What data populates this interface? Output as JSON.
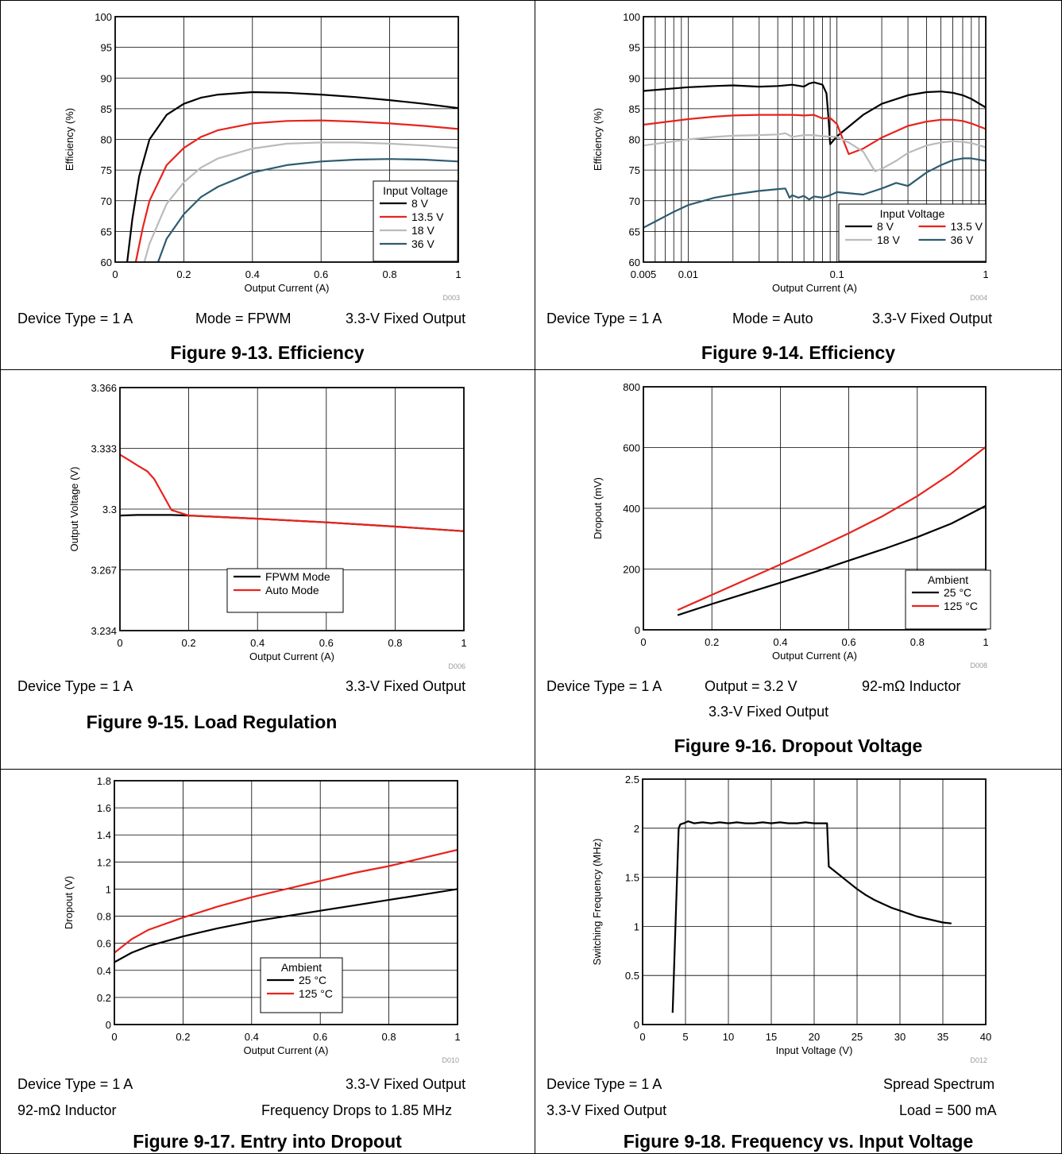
{
  "chart_data": [
    {
      "type": "line",
      "figure_id": "D003",
      "xlabel": "Output Current (A)",
      "ylabel": "Efficiency (%)",
      "xlim": [
        0,
        1
      ],
      "ylim": [
        60,
        100
      ],
      "xticks": [
        0,
        0.2,
        0.4,
        0.6,
        0.8,
        1
      ],
      "xtick_labels": [
        "0",
        "0.2",
        "0.4",
        "0.6",
        "0.8",
        "1"
      ],
      "yticks": [
        60,
        65,
        70,
        75,
        80,
        85,
        90,
        95,
        100
      ],
      "ytick_labels": [
        "60",
        "65",
        "70",
        "75",
        "80",
        "85",
        "90",
        "95",
        "100"
      ],
      "xscale": "linear",
      "grid": true,
      "legend_title": "Input Voltage",
      "legend_position": "bottom-right",
      "legend_columns": 1,
      "series": [
        {
          "name": "8 V",
          "color": "#000000",
          "x": [
            0.035,
            0.05,
            0.07,
            0.1,
            0.15,
            0.2,
            0.25,
            0.3,
            0.4,
            0.5,
            0.6,
            0.7,
            0.8,
            0.9,
            1.0
          ],
          "y": [
            60,
            67,
            74,
            80,
            84,
            85.8,
            86.8,
            87.3,
            87.7,
            87.6,
            87.3,
            86.9,
            86.4,
            85.8,
            85.1
          ]
        },
        {
          "name": "13.5 V",
          "color": "#e8231d",
          "x": [
            0.06,
            0.08,
            0.1,
            0.15,
            0.2,
            0.25,
            0.3,
            0.4,
            0.5,
            0.6,
            0.7,
            0.8,
            0.9,
            1.0
          ],
          "y": [
            60,
            65.5,
            70,
            75.8,
            78.6,
            80.4,
            81.5,
            82.6,
            83.0,
            83.1,
            82.9,
            82.6,
            82.2,
            81.7
          ]
        },
        {
          "name": "18 V",
          "color": "#bbbbbb",
          "x": [
            0.085,
            0.1,
            0.15,
            0.2,
            0.25,
            0.3,
            0.4,
            0.5,
            0.6,
            0.7,
            0.8,
            0.9,
            1.0
          ],
          "y": [
            60,
            63,
            69.5,
            73,
            75.4,
            76.9,
            78.5,
            79.3,
            79.5,
            79.5,
            79.3,
            79.0,
            78.6
          ]
        },
        {
          "name": "36 V",
          "color": "#2e5c6e",
          "x": [
            0.125,
            0.15,
            0.2,
            0.25,
            0.3,
            0.4,
            0.5,
            0.6,
            0.7,
            0.8,
            0.9,
            1.0
          ],
          "y": [
            60,
            63.8,
            67.8,
            70.6,
            72.3,
            74.6,
            75.8,
            76.4,
            76.7,
            76.8,
            76.7,
            76.4
          ]
        }
      ]
    },
    {
      "type": "line",
      "figure_id": "D004",
      "xlabel": "Output Current (A)",
      "ylabel": "Efficiency (%)",
      "xlim": [
        0.005,
        1
      ],
      "ylim": [
        60,
        100
      ],
      "xticks": [
        0.005,
        0.01,
        0.1,
        1
      ],
      "xtick_labels": [
        "0.005",
        "0.01",
        "0.1",
        "1"
      ],
      "yticks": [
        60,
        65,
        70,
        75,
        80,
        85,
        90,
        95,
        100
      ],
      "ytick_labels": [
        "60",
        "65",
        "70",
        "75",
        "80",
        "85",
        "90",
        "95",
        "100"
      ],
      "xscale": "log",
      "grid": true,
      "legend_title": "Input Voltage",
      "legend_position": "bottom-right",
      "legend_columns": 2,
      "series": [
        {
          "name": "8 V",
          "color": "#000000",
          "x": [
            0.005,
            0.01,
            0.015,
            0.02,
            0.03,
            0.04,
            0.05,
            0.06,
            0.065,
            0.07,
            0.075,
            0.08,
            0.085,
            0.088,
            0.09,
            0.1,
            0.15,
            0.2,
            0.3,
            0.4,
            0.5,
            0.6,
            0.7,
            0.8,
            1.0
          ],
          "y": [
            87.9,
            88.5,
            88.7,
            88.8,
            88.6,
            88.7,
            88.9,
            88.6,
            89.1,
            89.3,
            89.1,
            88.9,
            87.5,
            83,
            79.2,
            80.5,
            84,
            85.8,
            87.2,
            87.7,
            87.8,
            87.6,
            87.2,
            86.6,
            85.2
          ]
        },
        {
          "name": "13.5 V",
          "color": "#e8231d",
          "x": [
            0.005,
            0.01,
            0.015,
            0.02,
            0.03,
            0.04,
            0.05,
            0.06,
            0.07,
            0.08,
            0.09,
            0.1,
            0.12,
            0.15,
            0.2,
            0.3,
            0.4,
            0.5,
            0.6,
            0.7,
            0.8,
            1.0
          ],
          "y": [
            82.4,
            83.3,
            83.7,
            83.9,
            84.0,
            84.0,
            84.0,
            83.9,
            84.0,
            83.4,
            83.5,
            82.5,
            77.6,
            78.5,
            80.3,
            82.2,
            82.9,
            83.2,
            83.2,
            83.0,
            82.6,
            81.7
          ]
        },
        {
          "name": "18 V",
          "color": "#bbbbbb",
          "x": [
            0.005,
            0.01,
            0.015,
            0.02,
            0.03,
            0.04,
            0.045,
            0.05,
            0.06,
            0.07,
            0.08,
            0.1,
            0.12,
            0.15,
            0.18,
            0.2,
            0.25,
            0.3,
            0.4,
            0.5,
            0.6,
            0.7,
            0.8,
            1.0
          ],
          "y": [
            79.0,
            80.0,
            80.4,
            80.6,
            80.7,
            80.8,
            81.0,
            80.4,
            80.7,
            80.7,
            80.5,
            80.4,
            79.5,
            78.0,
            74.8,
            75.2,
            76.5,
            77.8,
            79.0,
            79.5,
            79.7,
            79.6,
            79.4,
            78.7
          ]
        },
        {
          "name": "36 V",
          "color": "#2e5c6e",
          "x": [
            0.005,
            0.006,
            0.008,
            0.01,
            0.015,
            0.02,
            0.03,
            0.04,
            0.045,
            0.048,
            0.05,
            0.055,
            0.06,
            0.065,
            0.07,
            0.08,
            0.09,
            0.1,
            0.15,
            0.2,
            0.25,
            0.3,
            0.4,
            0.5,
            0.6,
            0.7,
            0.8,
            1.0
          ],
          "y": [
            65.6,
            66.6,
            68.2,
            69.3,
            70.5,
            71.0,
            71.6,
            71.9,
            72.0,
            70.5,
            70.9,
            70.5,
            70.8,
            70.2,
            70.7,
            70.5,
            70.9,
            71.4,
            71.0,
            72.0,
            72.9,
            72.4,
            74.6,
            75.8,
            76.6,
            76.9,
            76.9,
            76.5
          ]
        }
      ]
    },
    {
      "type": "line",
      "figure_id": "D006",
      "xlabel": "Output Current (A)",
      "ylabel": "Output Voltage (V)",
      "xlim": [
        0,
        1
      ],
      "ylim": [
        3.234,
        3.366
      ],
      "xticks": [
        0,
        0.2,
        0.4,
        0.6,
        0.8,
        1
      ],
      "xtick_labels": [
        "0",
        "0.2",
        "0.4",
        "0.6",
        "0.8",
        "1"
      ],
      "yticks": [
        3.234,
        3.267,
        3.3,
        3.333,
        3.366
      ],
      "ytick_labels": [
        "3.234",
        "3.267",
        "3.3",
        "3.333",
        "3.366"
      ],
      "xscale": "linear",
      "grid": true,
      "legend_title": "",
      "legend_position": "bottom-right",
      "legend_columns": 1,
      "series": [
        {
          "name": "FPWM Mode",
          "color": "#000000",
          "x": [
            0,
            0.05,
            0.1,
            0.15,
            0.2,
            0.4,
            0.6,
            0.8,
            1.0
          ],
          "y": [
            3.2965,
            3.2968,
            3.2968,
            3.2968,
            3.2965,
            3.2948,
            3.2928,
            3.2905,
            3.288
          ]
        },
        {
          "name": "Auto Mode",
          "color": "#e8231d",
          "x": [
            0,
            0.03,
            0.05,
            0.08,
            0.1,
            0.15,
            0.2,
            0.4,
            0.6,
            0.8,
            1.0
          ],
          "y": [
            3.3296,
            3.3262,
            3.3238,
            3.3205,
            3.3162,
            3.2995,
            3.2965,
            3.2948,
            3.2928,
            3.2905,
            3.288
          ]
        }
      ]
    },
    {
      "type": "line",
      "figure_id": "D008",
      "xlabel": "Output Current (A)",
      "ylabel": "Dropout (mV)",
      "xlim": [
        0,
        1
      ],
      "ylim": [
        0,
        800
      ],
      "xticks": [
        0,
        0.2,
        0.4,
        0.6,
        0.8,
        1
      ],
      "xtick_labels": [
        "0",
        "0.2",
        "0.4",
        "0.6",
        "0.8",
        "1"
      ],
      "yticks": [
        0,
        200,
        400,
        600,
        800
      ],
      "ytick_labels": [
        "0",
        "200",
        "400",
        "600",
        "800"
      ],
      "xscale": "linear",
      "grid": true,
      "legend_title": "Ambient",
      "legend_position": "bottom-right",
      "legend_columns": 1,
      "series": [
        {
          "name": "25 °C",
          "color": "#000000",
          "x": [
            0.1,
            0.2,
            0.3,
            0.4,
            0.5,
            0.6,
            0.7,
            0.8,
            0.9,
            1.0
          ],
          "y": [
            48,
            85,
            120,
            155,
            190,
            228,
            265,
            305,
            350,
            408
          ]
        },
        {
          "name": "125 °C",
          "color": "#e8231d",
          "x": [
            0.1,
            0.2,
            0.3,
            0.4,
            0.5,
            0.6,
            0.7,
            0.8,
            0.9,
            1.0
          ],
          "y": [
            65,
            115,
            165,
            215,
            265,
            318,
            375,
            440,
            515,
            602
          ]
        }
      ]
    },
    {
      "type": "line",
      "figure_id": "D010",
      "xlabel": "Output Current (A)",
      "ylabel": "Dropout (V)",
      "xlim": [
        0,
        1
      ],
      "ylim": [
        0,
        1.8
      ],
      "xticks": [
        0,
        0.2,
        0.4,
        0.6,
        0.8,
        1
      ],
      "xtick_labels": [
        "0",
        "0.2",
        "0.4",
        "0.6",
        "0.8",
        "1"
      ],
      "yticks": [
        0,
        0.2,
        0.4,
        0.6,
        0.8,
        1,
        1.2,
        1.4,
        1.6,
        1.8
      ],
      "ytick_labels": [
        "0",
        "0.2",
        "0.4",
        "0.6",
        "0.8",
        "1",
        "1.2",
        "1.4",
        "1.6",
        "1.8"
      ],
      "xscale": "linear",
      "grid": true,
      "legend_title": "Ambient",
      "legend_position": "bottom-right",
      "legend_columns": 1,
      "series": [
        {
          "name": "25 °C",
          "color": "#000000",
          "x": [
            0,
            0.05,
            0.1,
            0.2,
            0.3,
            0.4,
            0.5,
            0.6,
            0.7,
            0.8,
            0.9,
            1.0
          ],
          "y": [
            0.46,
            0.53,
            0.58,
            0.65,
            0.71,
            0.76,
            0.8,
            0.84,
            0.88,
            0.92,
            0.96,
            1.0
          ]
        },
        {
          "name": "125 °C",
          "color": "#e8231d",
          "x": [
            0,
            0.05,
            0.1,
            0.2,
            0.3,
            0.4,
            0.5,
            0.6,
            0.7,
            0.8,
            0.9,
            1.0
          ],
          "y": [
            0.53,
            0.63,
            0.7,
            0.79,
            0.87,
            0.94,
            1.0,
            1.06,
            1.12,
            1.17,
            1.23,
            1.29
          ]
        }
      ]
    },
    {
      "type": "line",
      "figure_id": "D012",
      "xlabel": "Input Voltage (V)",
      "ylabel": "Switching Frequency (MHz)",
      "xlim": [
        0,
        40
      ],
      "ylim": [
        0,
        2.5
      ],
      "xticks": [
        0,
        5,
        10,
        15,
        20,
        25,
        30,
        35,
        40
      ],
      "xtick_labels": [
        "0",
        "5",
        "10",
        "15",
        "20",
        "25",
        "30",
        "35",
        "40"
      ],
      "yticks": [
        0,
        0.5,
        1,
        1.5,
        2,
        2.5
      ],
      "ytick_labels": [
        "0",
        "0.5",
        "1",
        "1.5",
        "2",
        "2.5"
      ],
      "xscale": "linear",
      "grid": true,
      "legend_title": "",
      "legend_position": "none",
      "legend_columns": 1,
      "series": [
        {
          "name": "",
          "color": "#000000",
          "x": [
            3.5,
            4.2,
            4.4,
            4.8,
            5.3,
            6,
            7,
            8,
            9,
            10,
            11,
            12,
            13,
            14,
            15,
            16,
            17,
            18,
            19,
            20,
            21,
            21.5,
            21.7,
            23,
            24,
            25,
            26,
            27,
            28,
            29,
            30,
            31,
            32,
            33,
            34,
            35,
            36
          ],
          "y": [
            0.12,
            2.0,
            2.04,
            2.05,
            2.07,
            2.05,
            2.06,
            2.05,
            2.06,
            2.05,
            2.06,
            2.05,
            2.05,
            2.06,
            2.05,
            2.06,
            2.05,
            2.05,
            2.06,
            2.05,
            2.05,
            2.05,
            1.61,
            1.52,
            1.45,
            1.38,
            1.32,
            1.27,
            1.23,
            1.19,
            1.16,
            1.13,
            1.1,
            1.08,
            1.06,
            1.04,
            1.03
          ]
        }
      ]
    }
  ],
  "panels": [
    {
      "conditions": [
        "Device Type = 1 A",
        "Mode = FPWM",
        "3.3-V Fixed Output"
      ],
      "caption": "Figure 9-13. Efficiency"
    },
    {
      "conditions": [
        "Device Type = 1 A",
        "Mode = Auto",
        "3.3-V Fixed Output"
      ],
      "caption": "Figure 9-14. Efficiency"
    },
    {
      "conditions": [
        "Device Type = 1 A",
        "3.3-V Fixed Output"
      ],
      "caption": "Figure 9-15. Load Regulation"
    },
    {
      "conditions": [
        "Device Type = 1 A",
        "Output = 3.2 V",
        "92-mΩ Inductor",
        "3.3-V Fixed Output"
      ],
      "caption": "Figure 9-16. Dropout Voltage"
    },
    {
      "conditions": [
        "Device Type = 1 A",
        "3.3-V Fixed Output",
        "92-mΩ Inductor",
        "Frequency Drops to 1.85 MHz"
      ],
      "caption": "Figure 9-17. Entry into Dropout"
    },
    {
      "conditions": [
        "Device Type = 1 A",
        "Spread Spectrum",
        "3.3-V Fixed Output",
        "Load = 500 mA"
      ],
      "caption": "Figure 9-18. Frequency vs. Input Voltage"
    }
  ],
  "colors": {
    "black": "#000000",
    "red": "#e8231d",
    "gray": "#bbbbbb",
    "teal": "#2e5c6e",
    "grid": "#000000"
  }
}
